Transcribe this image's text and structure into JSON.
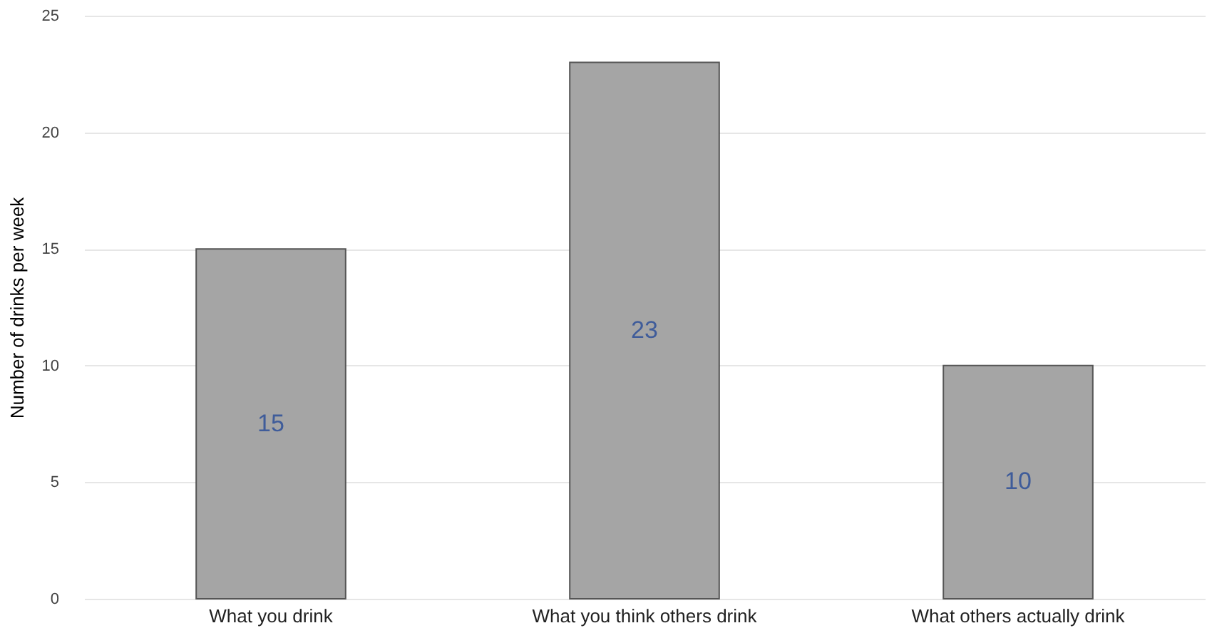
{
  "chart_data": {
    "type": "bar",
    "ylabel": "Number of drinks per week",
    "categories": [
      "What you drink",
      "What you think others drink",
      "What others actually drink"
    ],
    "values": [
      15,
      23,
      10
    ],
    "color": "#a5a5a5",
    "ylim": [
      0,
      25
    ],
    "yticks": [
      0,
      5,
      10,
      15,
      20,
      25
    ],
    "grid": "y",
    "data_labels": true
  }
}
